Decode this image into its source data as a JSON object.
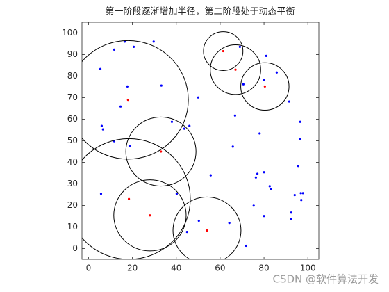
{
  "chart_data": {
    "type": "scatter",
    "title": "第一阶段逐渐增加半径，第二阶段处于动态平衡",
    "xlim": [
      -3,
      105
    ],
    "ylim": [
      -5,
      105
    ],
    "xticks": [
      0,
      20,
      40,
      60,
      80,
      100
    ],
    "yticks": [
      0,
      10,
      20,
      30,
      40,
      50,
      60,
      70,
      80,
      90,
      100
    ],
    "series": [
      {
        "color": "#0000ff",
        "x": [
          16.5,
          11.7,
          20.6,
          29.7,
          5.4,
          17.7,
          33.2,
          14.6,
          50,
          69,
          81,
          85.8,
          80,
          70.6,
          91.5,
          66.8,
          6,
          6.6,
          11.7,
          18.7,
          38,
          43.7,
          46,
          78,
          96.5,
          96.5,
          65.8,
          80,
          77,
          76.3,
          55.7,
          95.6,
          82.6,
          83.2,
          5.7,
          40.2,
          94,
          96.8,
          97.8,
          97,
          75.3,
          80,
          92.4,
          92.4,
          50.3,
          64.2,
          44.9,
          71.8
        ],
        "y": [
          96,
          92.3,
          93.6,
          96,
          83.3,
          75.2,
          75.6,
          65.9,
          70.1,
          93.6,
          89.4,
          81.7,
          78.1,
          76.2,
          68.2,
          61.7,
          56.9,
          55.3,
          49.8,
          47.6,
          58.8,
          55.6,
          56.9,
          53.4,
          58.8,
          50.8,
          47.3,
          35.4,
          34.7,
          33,
          34,
          38.3,
          28.9,
          27.6,
          25.4,
          25.4,
          24.8,
          25.7,
          25.7,
          22.5,
          19.9,
          15.1,
          16.7,
          13.8,
          12.9,
          11.9,
          7.7,
          1.3
        ]
      },
      {
        "color": "#ff0000",
        "edge_color": "#000000",
        "x": [
          61.4,
          67,
          80.4,
          18,
          33,
          18.4,
          28,
          54
        ],
        "y": [
          91.6,
          83,
          75.2,
          69,
          45,
          23,
          15.4,
          8.4
        ],
        "r": [
          9,
          11.5,
          11,
          27.5,
          16,
          28,
          16.5,
          15.5
        ]
      }
    ],
    "watermark": "CSDN @软件算法开发"
  }
}
